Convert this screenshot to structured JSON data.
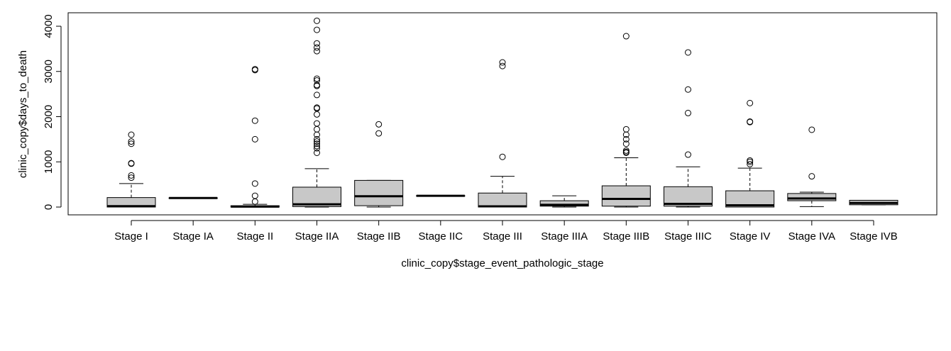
{
  "chart_data": {
    "type": "box",
    "title": "",
    "xlabel": "clinic_copy$stage_event_pathologic_stage",
    "ylabel": "clinic_copy$days_to_death",
    "ylim": [
      -150,
      4300
    ],
    "yticks": [
      0,
      1000,
      2000,
      3000,
      4000
    ],
    "box_fill": "#c8c8c8",
    "categories": [
      "Stage I",
      "Stage IA",
      "Stage II",
      "Stage IIA",
      "Stage IIB",
      "Stage IIC",
      "Stage III",
      "Stage IIIA",
      "Stage IIIB",
      "Stage IIIC",
      "Stage IV",
      "Stage IVA",
      "Stage IVB"
    ],
    "boxes": [
      {
        "label": "Stage I",
        "min": 0,
        "q1": 0,
        "median": 20,
        "q3": 210,
        "max": 520,
        "outliers": [
          650,
          700,
          960,
          970,
          1400,
          1450,
          1600
        ]
      },
      {
        "label": "Stage IA",
        "min": 195,
        "q1": 195,
        "median": 200,
        "q3": 205,
        "max": 205,
        "outliers": []
      },
      {
        "label": "Stage II",
        "min": 0,
        "q1": 0,
        "median": 10,
        "q3": 30,
        "max": 60,
        "outliers": [
          120,
          250,
          520,
          1500,
          1910,
          3030,
          3050
        ]
      },
      {
        "label": "Stage IIA",
        "min": 0,
        "q1": 10,
        "median": 60,
        "q3": 440,
        "max": 850,
        "outliers": [
          1200,
          1300,
          1350,
          1400,
          1450,
          1500,
          1600,
          1720,
          1850,
          2050,
          2180,
          2200,
          2480,
          2680,
          2700,
          2800,
          2840,
          3450,
          3530,
          3620,
          3920,
          4120
        ]
      },
      {
        "label": "Stage IIB",
        "min": 0,
        "q1": 30,
        "median": 240,
        "q3": 590,
        "max": 590,
        "outliers": [
          1630,
          1830
        ]
      },
      {
        "label": "Stage IIC",
        "min": 245,
        "q1": 245,
        "median": 250,
        "q3": 255,
        "max": 255,
        "outliers": []
      },
      {
        "label": "Stage III",
        "min": 0,
        "q1": 0,
        "median": 15,
        "q3": 310,
        "max": 680,
        "outliers": [
          1110,
          3120,
          3200
        ]
      },
      {
        "label": "Stage IIIA",
        "min": 0,
        "q1": 20,
        "median": 50,
        "q3": 140,
        "max": 250,
        "outliers": []
      },
      {
        "label": "Stage IIIB",
        "min": 0,
        "q1": 20,
        "median": 180,
        "q3": 470,
        "max": 1090,
        "outliers": [
          1200,
          1220,
          1250,
          1400,
          1500,
          1600,
          1720,
          3780
        ]
      },
      {
        "label": "Stage IIIC",
        "min": 0,
        "q1": 20,
        "median": 70,
        "q3": 450,
        "max": 890,
        "outliers": [
          1160,
          2080,
          2600,
          3420
        ]
      },
      {
        "label": "Stage IV",
        "min": 0,
        "q1": 0,
        "median": 40,
        "q3": 360,
        "max": 860,
        "outliers": [
          950,
          1000,
          1030,
          1880,
          1890,
          2300
        ]
      },
      {
        "label": "Stage IVA",
        "min": 10,
        "q1": 140,
        "median": 190,
        "q3": 300,
        "max": 330,
        "outliers": [
          680,
          1710
        ]
      },
      {
        "label": "Stage IVB",
        "min": 50,
        "q1": 50,
        "median": 90,
        "q3": 150,
        "max": 150,
        "outliers": []
      }
    ]
  }
}
